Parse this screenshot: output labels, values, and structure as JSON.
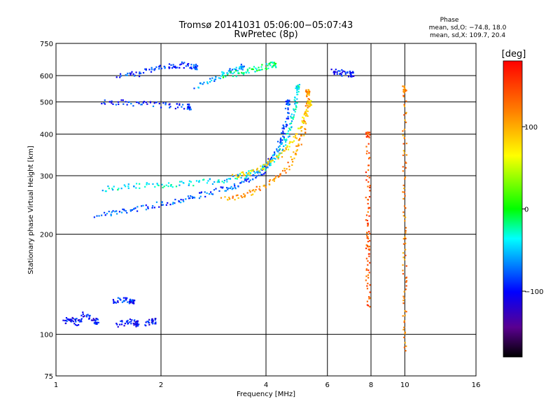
{
  "chart_data": {
    "type": "scatter",
    "title": "Tromsø 20141031 05:06:00−05:07:43",
    "subtitle": "RwPretec (8p)",
    "xlabel": "Frequency [MHz]",
    "ylabel": "Stationary phase Virtual Height [km]",
    "x_scale": "log",
    "y_scale": "log",
    "xlim": [
      1,
      16
    ],
    "ylim": [
      75,
      750
    ],
    "x_ticks": [
      1,
      2,
      4,
      6,
      8,
      10,
      16
    ],
    "x_tick_labels": [
      "1",
      "2",
      "4",
      "6",
      "8",
      "10",
      "16"
    ],
    "y_ticks": [
      75,
      100,
      200,
      300,
      400,
      500,
      600,
      750
    ],
    "y_tick_labels": [
      "75",
      "100",
      "200",
      "300",
      "400",
      "500",
      "600",
      "750"
    ],
    "grid": true,
    "colorbar": {
      "title": "[deg]",
      "range": [
        -180,
        180
      ],
      "ticks": [
        -100,
        0,
        100
      ],
      "tick_labels": [
        "−100",
        "0",
        "100"
      ]
    },
    "stats": {
      "heading": "Phase",
      "line1": "mean, sd,O: −74.8, 18.0",
      "line2": "mean, sd,X: 109.7, 20.4"
    },
    "series": [
      {
        "name": "O",
        "mean_phase": -74.8,
        "sd_phase": 18.0
      },
      {
        "name": "X",
        "mean_phase": 109.7,
        "sd_phase": 20.4
      }
    ],
    "traces": [
      {
        "x": [
          1.3,
          1.5,
          1.7,
          2.0,
          2.3,
          2.6,
          3.0,
          3.3,
          3.6,
          3.9,
          4.1,
          4.3,
          4.45,
          4.55,
          4.6
        ],
        "y": [
          230,
          234,
          240,
          248,
          256,
          264,
          274,
          283,
          295,
          312,
          335,
          365,
          400,
          440,
          500
        ],
        "phase": -80
      },
      {
        "x": [
          1.35,
          1.6,
          1.9,
          2.2,
          2.6,
          3.0,
          3.4,
          3.8,
          4.1,
          4.4,
          4.6,
          4.75,
          4.85,
          4.9
        ],
        "y": [
          275,
          280,
          282,
          284,
          288,
          292,
          300,
          312,
          330,
          360,
          400,
          450,
          500,
          560
        ],
        "phase": -40
      },
      {
        "x": [
          3.0,
          3.4,
          3.8,
          4.2,
          4.6,
          4.9,
          5.1,
          5.2,
          5.25
        ],
        "y": [
          255,
          262,
          275,
          292,
          320,
          360,
          410,
          470,
          540
        ],
        "phase": 110
      },
      {
        "x": [
          3.2,
          3.6,
          4.0,
          4.4,
          4.8,
          5.1,
          5.3
        ],
        "y": [
          300,
          310,
          325,
          350,
          390,
          440,
          500
        ],
        "phase": 80
      },
      {
        "x": [
          1.35,
          1.55,
          1.8,
          2.1,
          2.4
        ],
        "y": [
          505,
          500,
          495,
          490,
          485
        ],
        "phase": -90
      },
      {
        "x": [
          1.5,
          1.7,
          1.9,
          2.1,
          2.3,
          2.5
        ],
        "y": [
          600,
          610,
          630,
          640,
          650,
          640
        ],
        "phase": -90
      },
      {
        "x": [
          2.5,
          2.8,
          3.1,
          3.4
        ],
        "y": [
          560,
          590,
          620,
          640
        ],
        "phase": -60
      },
      {
        "x": [
          3.0,
          3.3,
          3.6,
          3.9,
          4.2
        ],
        "y": [
          600,
          615,
          625,
          640,
          650
        ],
        "phase": -20
      },
      {
        "x": [
          1.05,
          1.1,
          1.15,
          1.2,
          1.3
        ],
        "y": [
          110,
          112,
          108,
          115,
          110
        ],
        "phase": -100
      },
      {
        "x": [
          1.45,
          1.55,
          1.65
        ],
        "y": [
          125,
          128,
          126
        ],
        "phase": -90
      },
      {
        "x": [
          1.5,
          1.6,
          1.7
        ],
        "y": [
          107,
          110,
          108
        ],
        "phase": -100
      },
      {
        "x": [
          1.8,
          1.9
        ],
        "y": [
          108,
          110
        ],
        "phase": -100
      },
      {
        "x": [
          7.8,
          7.8,
          7.8,
          7.8,
          7.8,
          7.8,
          7.8
        ],
        "y": [
          120,
          150,
          180,
          200,
          240,
          300,
          400
        ],
        "phase": 140
      },
      {
        "x": [
          9.95,
          9.95,
          9.95,
          9.95,
          9.95,
          9.95,
          9.95
        ],
        "y": [
          90,
          120,
          160,
          210,
          300,
          400,
          550
        ],
        "phase": 120
      },
      {
        "x": [
          6.2,
          6.5,
          7.0
        ],
        "y": [
          620,
          615,
          610
        ],
        "phase": -100
      }
    ]
  }
}
